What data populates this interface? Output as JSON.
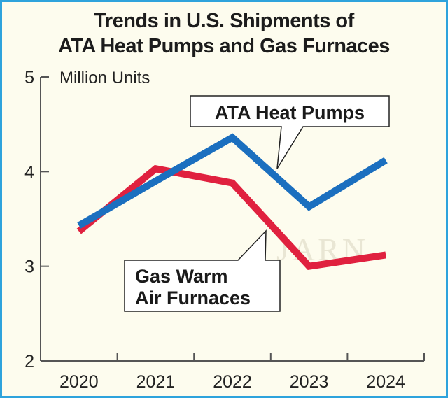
{
  "chart_data": {
    "type": "line",
    "title_line1": "Trends in U.S. Shipments of",
    "title_line2": "ATA Heat Pumps and Gas Furnaces",
    "ylabel": "Million Units",
    "xlabel": "",
    "categories": [
      "2020",
      "2021",
      "2022",
      "2023",
      "2024"
    ],
    "ylim": [
      2,
      5
    ],
    "yticks": [
      "2",
      "3",
      "4",
      "5"
    ],
    "grid": false,
    "series": [
      {
        "name": "ATA Heat Pumps",
        "color": "#1b6fbf",
        "values": [
          3.43,
          3.9,
          4.36,
          3.63,
          4.12
        ],
        "callout": "ATA Heat Pumps"
      },
      {
        "name": "Gas Warm Air Furnaces",
        "color": "#e0213f",
        "values": [
          3.37,
          4.03,
          3.88,
          3.0,
          3.12
        ],
        "callout_line1": "Gas Warm",
        "callout_line2": "Air Furnaces"
      }
    ],
    "watermark": "JARN"
  },
  "colors": {
    "border": "#2ea3dc",
    "background": "#fdfcee",
    "axis": "#555555"
  }
}
